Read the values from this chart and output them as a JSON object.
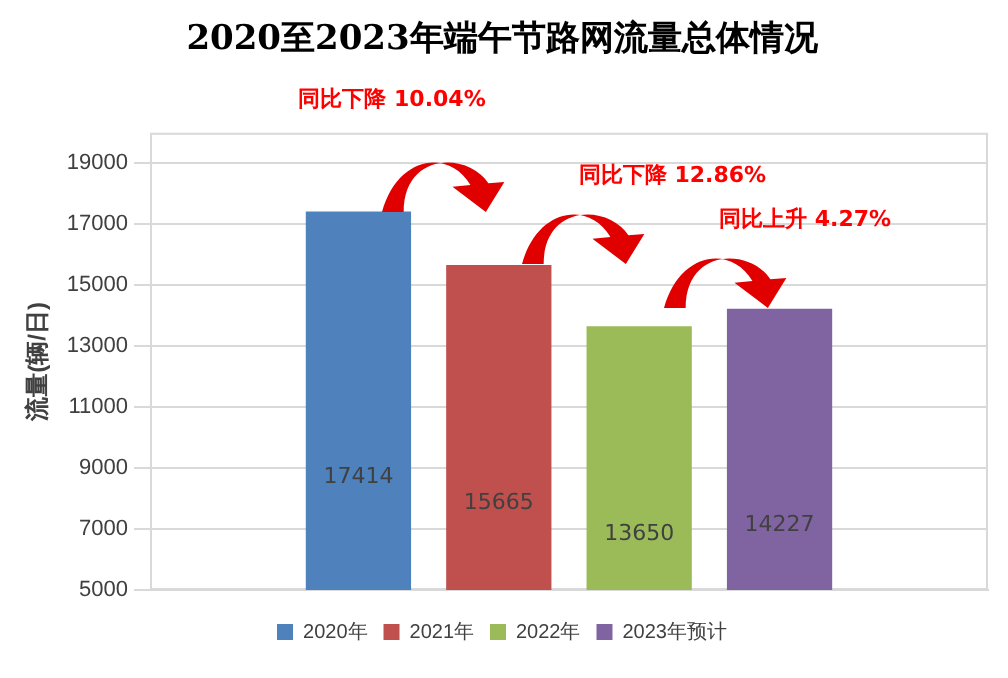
{
  "chart_data": {
    "type": "bar",
    "title": "2020至2023年端午节路网流量总体情况",
    "ylabel": "流量(辆/日)",
    "categories": [
      null
    ],
    "series": [
      {
        "name": "2020年",
        "color": "#4f81bd",
        "values": [
          17414
        ]
      },
      {
        "name": "2021年",
        "color": "#c0504d",
        "values": [
          15665
        ]
      },
      {
        "name": "2022年",
        "color": "#9bbb59",
        "values": [
          13650
        ]
      },
      {
        "name": "2023年预计",
        "color": "#8064a2",
        "values": [
          14227
        ]
      }
    ],
    "ylim": [
      5000,
      20000
    ],
    "yticks": [
      5000,
      7000,
      9000,
      11000,
      13000,
      15000,
      17000,
      19000
    ],
    "grid": "y",
    "legend": "bottom",
    "data_labels": true,
    "annotations": [
      "同比下降 10.04%",
      "同比下降 12.86%",
      "同比上升 4.27%"
    ]
  }
}
